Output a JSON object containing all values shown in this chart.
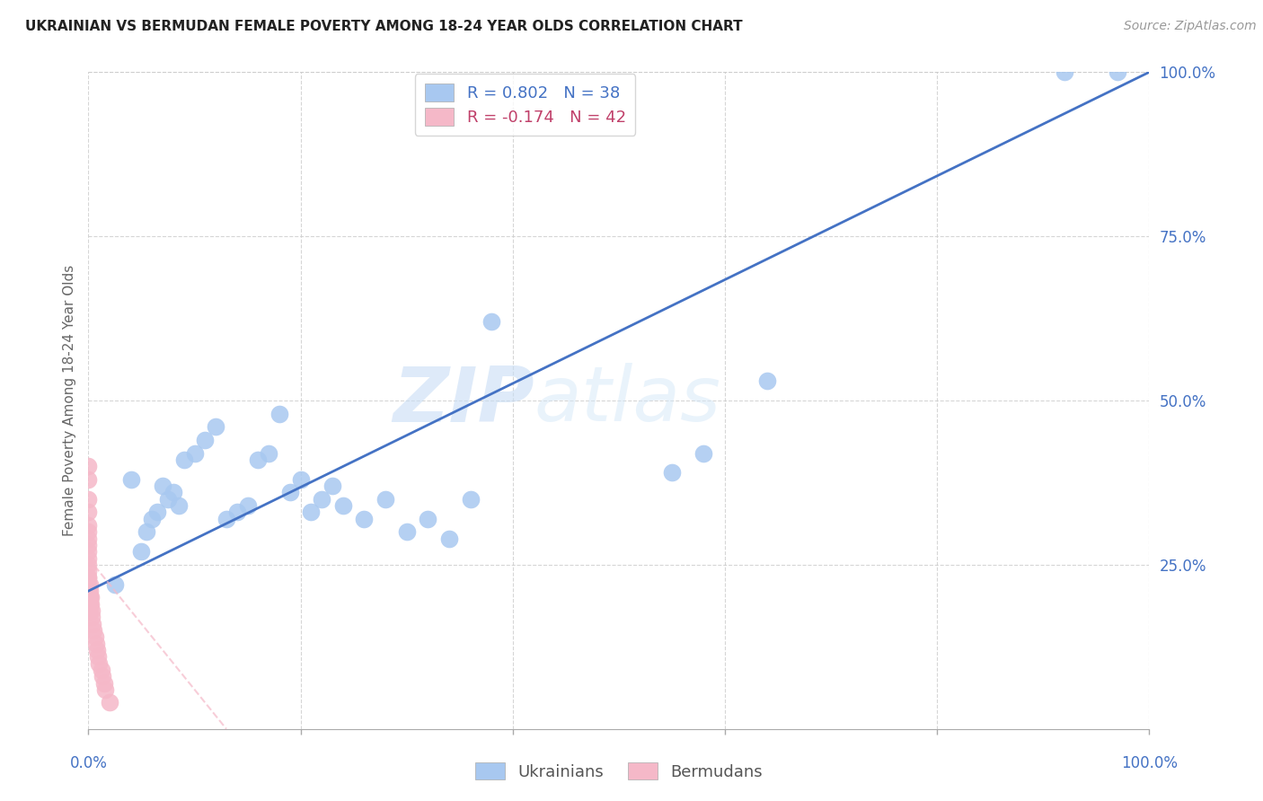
{
  "title": "UKRAINIAN VS BERMUDAN FEMALE POVERTY AMONG 18-24 YEAR OLDS CORRELATION CHART",
  "source": "Source: ZipAtlas.com",
  "ylabel": "Female Poverty Among 18-24 Year Olds",
  "xlim": [
    0,
    1
  ],
  "ylim": [
    0,
    1
  ],
  "ukrainian_color": "#a8c8f0",
  "bermudan_color": "#f5b8c8",
  "ukrainian_line_color": "#4472C4",
  "bermudan_line_color": "#f5b8c8",
  "r_ukrainian": 0.802,
  "n_ukrainian": 38,
  "r_bermudan": -0.174,
  "n_bermudan": 42,
  "watermark_zip": "ZIP",
  "watermark_atlas": "atlas",
  "background_color": "#ffffff",
  "ukr_x": [
    0.025,
    0.04,
    0.05,
    0.055,
    0.06,
    0.065,
    0.07,
    0.075,
    0.08,
    0.085,
    0.09,
    0.1,
    0.11,
    0.12,
    0.13,
    0.14,
    0.15,
    0.16,
    0.17,
    0.18,
    0.19,
    0.2,
    0.21,
    0.22,
    0.23,
    0.24,
    0.26,
    0.28,
    0.3,
    0.32,
    0.34,
    0.36,
    0.38,
    0.55,
    0.58,
    0.64,
    0.92,
    0.97
  ],
  "ukr_y": [
    0.22,
    0.38,
    0.27,
    0.3,
    0.32,
    0.33,
    0.37,
    0.35,
    0.36,
    0.34,
    0.41,
    0.42,
    0.44,
    0.46,
    0.32,
    0.33,
    0.34,
    0.41,
    0.42,
    0.48,
    0.36,
    0.38,
    0.33,
    0.35,
    0.37,
    0.34,
    0.32,
    0.35,
    0.3,
    0.32,
    0.29,
    0.35,
    0.62,
    0.39,
    0.42,
    0.53,
    1.0,
    1.0
  ],
  "berm_x": [
    0.0,
    0.0,
    0.0,
    0.0,
    0.0,
    0.0,
    0.0,
    0.0,
    0.0,
    0.0,
    0.0,
    0.0,
    0.0,
    0.0,
    0.0,
    0.0,
    0.0,
    0.0,
    0.0,
    0.0,
    0.0,
    0.001,
    0.001,
    0.001,
    0.001,
    0.001,
    0.002,
    0.002,
    0.003,
    0.003,
    0.004,
    0.005,
    0.006,
    0.007,
    0.008,
    0.009,
    0.01,
    0.012,
    0.013,
    0.015,
    0.016,
    0.02
  ],
  "berm_y": [
    0.4,
    0.38,
    0.35,
    0.33,
    0.31,
    0.3,
    0.29,
    0.28,
    0.27,
    0.26,
    0.25,
    0.24,
    0.23,
    0.23,
    0.22,
    0.21,
    0.21,
    0.2,
    0.2,
    0.19,
    0.18,
    0.22,
    0.21,
    0.2,
    0.19,
    0.18,
    0.2,
    0.19,
    0.18,
    0.17,
    0.16,
    0.15,
    0.14,
    0.13,
    0.12,
    0.11,
    0.1,
    0.09,
    0.08,
    0.07,
    0.06,
    0.04
  ],
  "ukr_line_x0": 0.0,
  "ukr_line_y0": 0.21,
  "ukr_line_x1": 1.0,
  "ukr_line_y1": 1.0,
  "berm_line_x0": 0.0,
  "berm_line_y0": 0.26,
  "berm_line_x1": 0.13,
  "berm_line_y1": 0.0
}
